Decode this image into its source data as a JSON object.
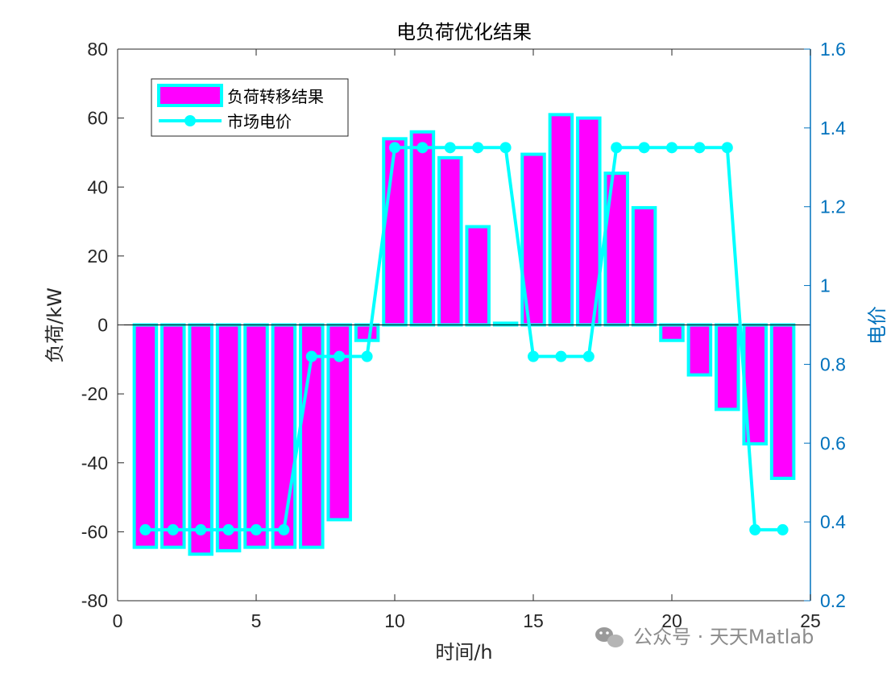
{
  "colors": {
    "bar_fill": "#ff00ff",
    "bar_edge": "#00ffff",
    "line": "#00ffff",
    "right_axis": "#0072bd",
    "axis": "#262626",
    "watermark": "#8c8c8c"
  },
  "watermark": "公众号 · 天天Matlab",
  "watermark_icon": "wechat-icon",
  "chart_data": {
    "type": "bar",
    "title": "电负荷优化结果",
    "xlabel": "时间/h",
    "ylabel": "负荷/kW",
    "y2label": "电价",
    "xlim": [
      0,
      25
    ],
    "ylim": [
      -80,
      80
    ],
    "y2lim": [
      0.2,
      1.6
    ],
    "xticks": [
      "0",
      "5",
      "10",
      "15",
      "20",
      "25"
    ],
    "yticks": [
      "-80",
      "-60",
      "-40",
      "-20",
      "0",
      "20",
      "40",
      "60",
      "80"
    ],
    "y2ticks": [
      "0.2",
      "0.4",
      "0.6",
      "0.8",
      "1",
      "1.2",
      "1.4",
      "1.6"
    ],
    "legend_position": "top-left",
    "x": [
      1,
      2,
      3,
      4,
      5,
      6,
      7,
      8,
      9,
      10,
      11,
      12,
      13,
      14,
      15,
      16,
      17,
      18,
      19,
      20,
      21,
      22,
      23,
      24
    ],
    "series": [
      {
        "name": "负荷转移结果",
        "type": "bar",
        "axis": "left",
        "values": [
          -64.5,
          -64.5,
          -66.5,
          -65.5,
          -64.5,
          -64.5,
          -64.5,
          -56.5,
          -4.5,
          54,
          56,
          48.5,
          28.5,
          0.5,
          49.5,
          61,
          60,
          44,
          34,
          -4.5,
          -14.5,
          -24.5,
          -34.5,
          -44.5
        ]
      },
      {
        "name": "市场电价",
        "type": "line",
        "axis": "right",
        "values": [
          0.38,
          0.38,
          0.38,
          0.38,
          0.38,
          0.38,
          0.82,
          0.82,
          0.82,
          1.35,
          1.35,
          1.35,
          1.35,
          1.35,
          0.82,
          0.82,
          0.82,
          1.35,
          1.35,
          1.35,
          1.35,
          1.35,
          0.38,
          0.38
        ]
      }
    ]
  }
}
